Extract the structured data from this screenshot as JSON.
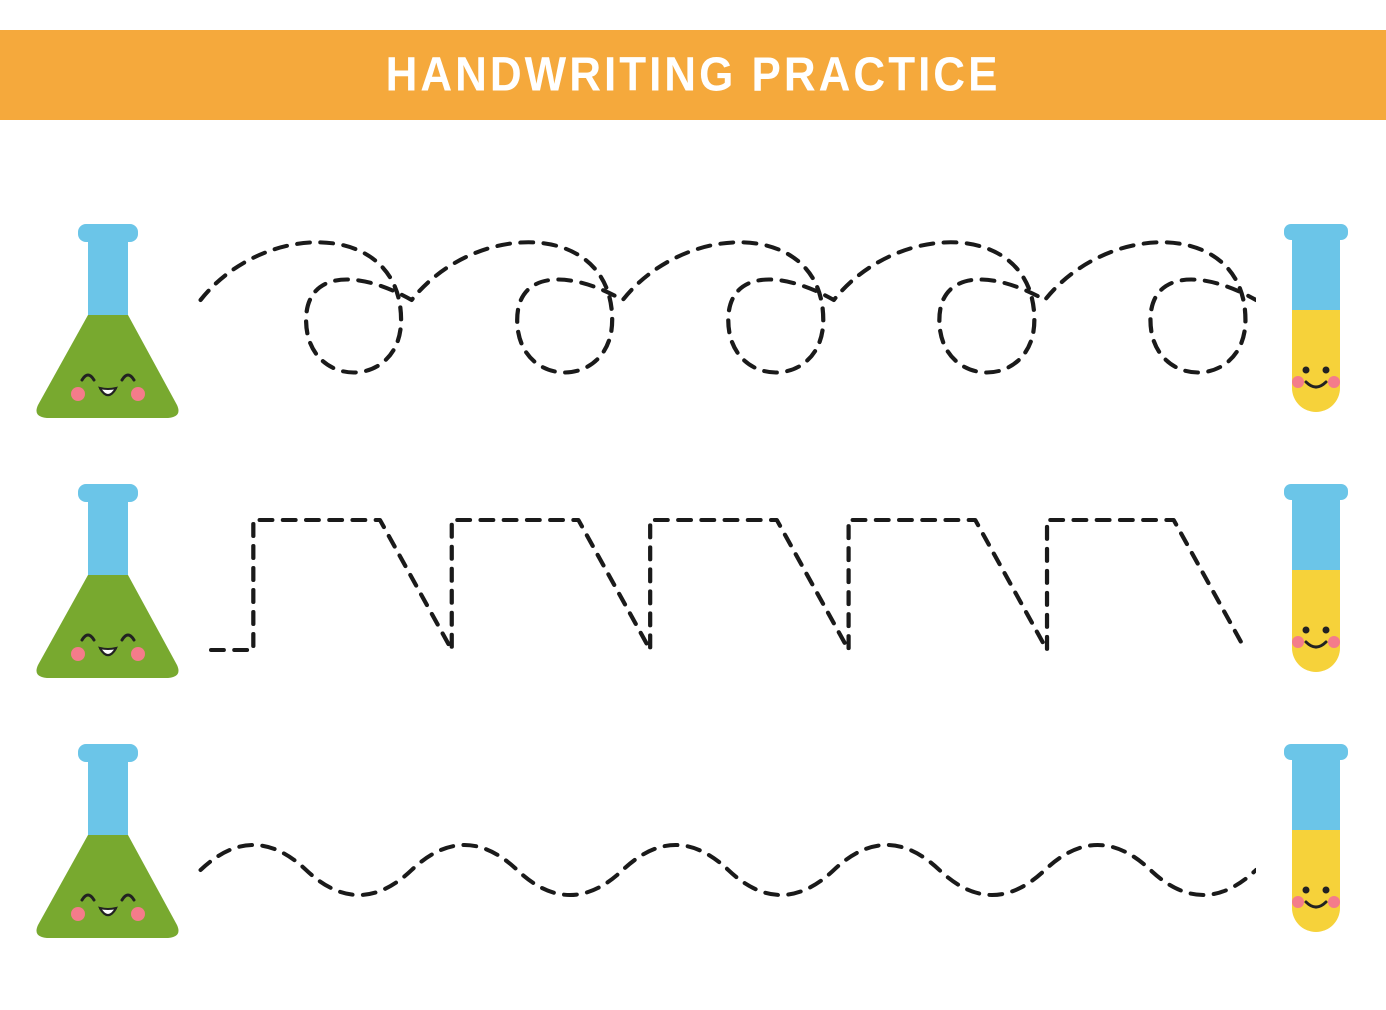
{
  "header": {
    "title": "HANDWRITING PRACTICE",
    "band_color": "#f5a93c",
    "text_color": "#ffffff",
    "title_fontsize": 44
  },
  "background_color": "#ffffff",
  "trace": {
    "stroke_color": "#1a1a1a",
    "stroke_width": 4,
    "dash": "12 10"
  },
  "flask": {
    "neck_color": "#6bc5e8",
    "liquid_color": "#78a92f",
    "outline": "#4db3dd",
    "cheek_color": "#f47c8a",
    "eye_color": "#222222",
    "mouth_color": "#222222"
  },
  "tube": {
    "top_color": "#6bc5e8",
    "liquid_color": "#f6d23a",
    "cheek_color": "#f47c8a",
    "eye_color": "#222222",
    "mouth_color": "#222222"
  },
  "rows": [
    {
      "pattern": "loops"
    },
    {
      "pattern": "zigzag"
    },
    {
      "pattern": "wave"
    }
  ]
}
